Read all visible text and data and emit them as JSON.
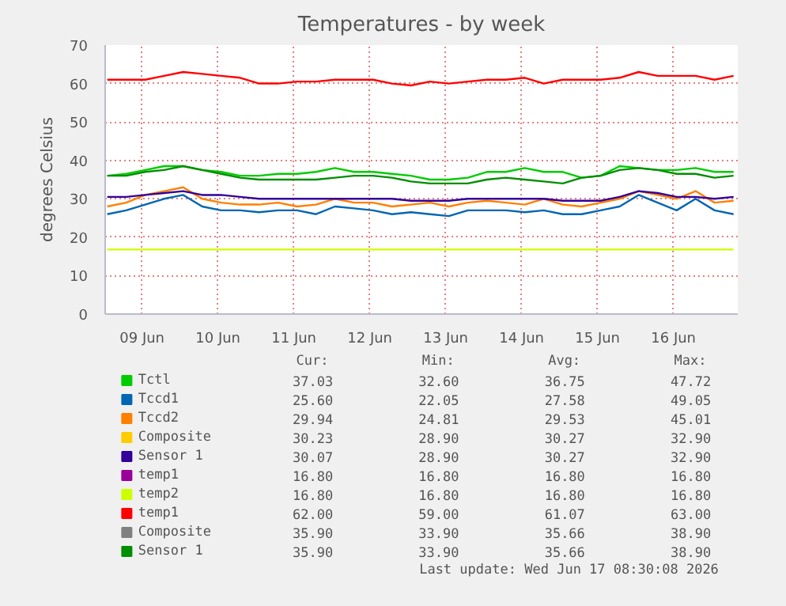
{
  "chart_data": {
    "type": "line",
    "title": "Temperatures - by week",
    "ylabel": "degrees Celsius",
    "x": [
      "2026-06-09T01:00",
      "2026-06-09T07:00",
      "2026-06-09T13:00",
      "2026-06-09T19:00",
      "2026-06-10T01:00",
      "2026-06-10T07:00",
      "2026-06-10T13:00",
      "2026-06-10T19:00",
      "2026-06-11T01:00",
      "2026-06-11T07:00",
      "2026-06-11T13:00",
      "2026-06-11T19:00",
      "2026-06-12T01:00",
      "2026-06-12T07:00",
      "2026-06-12T13:00",
      "2026-06-12T19:00",
      "2026-06-13T01:00",
      "2026-06-13T07:00",
      "2026-06-13T13:00",
      "2026-06-13T19:00",
      "2026-06-14T01:00",
      "2026-06-14T07:00",
      "2026-06-14T13:00",
      "2026-06-14T19:00",
      "2026-06-15T01:00",
      "2026-06-15T07:00",
      "2026-06-15T13:00",
      "2026-06-15T19:00",
      "2026-06-16T01:00",
      "2026-06-16T07:00",
      "2026-06-16T13:00",
      "2026-06-16T19:00",
      "2026-06-17T01:00",
      "2026-06-17T07:00"
    ],
    "series": [
      {
        "name": "Tctl",
        "color": "#00cc00",
        "values": [
          36,
          36.5,
          37.5,
          38.5,
          38.5,
          37.5,
          37,
          36,
          36,
          36.5,
          36.5,
          37,
          38,
          37,
          37,
          36.5,
          36,
          35,
          35,
          35.5,
          37,
          37,
          38,
          37,
          37,
          35.5,
          36,
          38.5,
          38,
          37.5,
          37.5,
          38,
          37,
          37
        ]
      },
      {
        "name": "Tccd1",
        "color": "#0066b3",
        "values": [
          26,
          27,
          28.5,
          30,
          31,
          28,
          27,
          27,
          26.5,
          27,
          27,
          26,
          28,
          27.5,
          27,
          26,
          26.5,
          26,
          25.5,
          27,
          27,
          27,
          26.5,
          27,
          26,
          26,
          27,
          28,
          31,
          29,
          27,
          30,
          27,
          26
        ]
      },
      {
        "name": "Tccd2",
        "color": "#ff8000",
        "values": [
          28,
          29,
          31,
          32,
          33,
          30,
          29,
          28.5,
          28.5,
          29,
          28,
          28.5,
          30,
          29,
          29,
          28,
          28.5,
          29,
          28,
          29,
          29.5,
          29,
          28.5,
          30,
          28.5,
          28,
          29,
          30,
          32,
          31,
          30,
          32,
          29,
          29.5
        ]
      },
      {
        "name": "Composite",
        "color": "#ffcc00",
        "values": [
          null,
          null,
          null,
          null,
          null,
          null,
          null,
          null,
          null,
          null,
          null,
          null,
          null,
          null,
          null,
          null,
          null,
          null,
          null,
          null,
          null,
          null,
          null,
          null,
          null,
          null,
          null,
          null,
          null,
          null,
          null,
          null,
          null,
          null
        ]
      },
      {
        "name": "Sensor 1",
        "color": "#330099",
        "values": [
          30.5,
          30.5,
          31,
          31.5,
          32,
          31,
          31,
          30.5,
          30,
          30,
          30,
          30,
          30,
          30,
          30,
          30,
          29.5,
          29.5,
          29.5,
          30,
          30,
          30,
          30,
          30,
          29.5,
          29.5,
          29.5,
          30.5,
          32,
          31.5,
          30.5,
          30.5,
          30,
          30.5
        ]
      },
      {
        "name": "temp1",
        "color": "#990099",
        "values": [
          null,
          null,
          null,
          null,
          null,
          null,
          null,
          null,
          null,
          null,
          null,
          null,
          null,
          null,
          null,
          null,
          null,
          null,
          null,
          null,
          null,
          null,
          null,
          null,
          null,
          null,
          null,
          null,
          null,
          null,
          null,
          null,
          null,
          null
        ]
      },
      {
        "name": "temp2",
        "color": "#ccff00",
        "values": [
          16.8,
          16.8,
          16.8,
          16.8,
          16.8,
          16.8,
          16.8,
          16.8,
          16.8,
          16.8,
          16.8,
          16.8,
          16.8,
          16.8,
          16.8,
          16.8,
          16.8,
          16.8,
          16.8,
          16.8,
          16.8,
          16.8,
          16.8,
          16.8,
          16.8,
          16.8,
          16.8,
          16.8,
          16.8,
          16.8,
          16.8,
          16.8,
          16.8,
          16.8
        ]
      },
      {
        "name": "temp1",
        "color": "#ff0000",
        "values": [
          61,
          61,
          61,
          62,
          63,
          62.5,
          62,
          61.5,
          60,
          60,
          60.5,
          60.5,
          61,
          61,
          61,
          60,
          59.5,
          60.5,
          60,
          60.5,
          61,
          61,
          61.5,
          60,
          61,
          61,
          61,
          61.5,
          63,
          62,
          62,
          62,
          61,
          62
        ]
      },
      {
        "name": "Composite",
        "color": "#808080",
        "values": [
          null,
          null,
          null,
          null,
          null,
          null,
          null,
          null,
          null,
          null,
          null,
          null,
          null,
          null,
          null,
          null,
          null,
          null,
          null,
          null,
          null,
          null,
          null,
          null,
          null,
          null,
          null,
          null,
          null,
          null,
          null,
          null,
          null,
          null
        ]
      },
      {
        "name": "Sensor 1",
        "color": "#008f00",
        "values": [
          36,
          36,
          37,
          37.5,
          38.5,
          37.5,
          36.5,
          35.5,
          35,
          35,
          35,
          35,
          35.5,
          36,
          36,
          35.5,
          34.5,
          34,
          34,
          34,
          35,
          35.5,
          35,
          34.5,
          34,
          35.5,
          36,
          37.5,
          38,
          37.5,
          36.5,
          36.5,
          35.5,
          36
        ]
      }
    ],
    "xlim": [
      "2026-06-09T00:20",
      "2026-06-17T08:20"
    ],
    "xticks": [
      {
        "value": "2026-06-09T12:00",
        "label": "09 Jun"
      },
      {
        "value": "2026-06-10T12:00",
        "label": "10 Jun"
      },
      {
        "value": "2026-06-11T12:00",
        "label": "11 Jun"
      },
      {
        "value": "2026-06-12T12:00",
        "label": "12 Jun"
      },
      {
        "value": "2026-06-13T12:00",
        "label": "13 Jun"
      },
      {
        "value": "2026-06-14T12:00",
        "label": "14 Jun"
      },
      {
        "value": "2026-06-15T12:00",
        "label": "15 Jun"
      },
      {
        "value": "2026-06-16T12:00",
        "label": "16 Jun"
      }
    ],
    "ylim": [
      0,
      70
    ],
    "yticks": [
      0,
      10,
      20,
      30,
      40,
      50,
      60,
      70
    ],
    "grid": true,
    "legend": "bottom",
    "marker": "none",
    "line_style": "solid",
    "annotations": [
      "Cur:",
      "Min:",
      "Avg:",
      "Max:",
      "37.03",
      "32.60",
      "36.75",
      "47.72",
      "25.60",
      "22.05",
      "27.58",
      "49.05",
      "29.94",
      "24.81",
      "29.53",
      "45.01",
      "30.23",
      "28.90",
      "30.27",
      "32.90",
      "30.07",
      "28.90",
      "30.27",
      "32.90",
      "16.80",
      "16.80",
      "16.80",
      "16.80",
      "16.80",
      "16.80",
      "16.80",
      "16.80",
      "62.00",
      "59.00",
      "61.07",
      "63.00",
      "35.90",
      "33.90",
      "35.66",
      "38.90",
      "35.90",
      "33.90",
      "35.66",
      "38.90",
      "Last update: Wed Jun 17 08:30:08 2026"
    ]
  }
}
